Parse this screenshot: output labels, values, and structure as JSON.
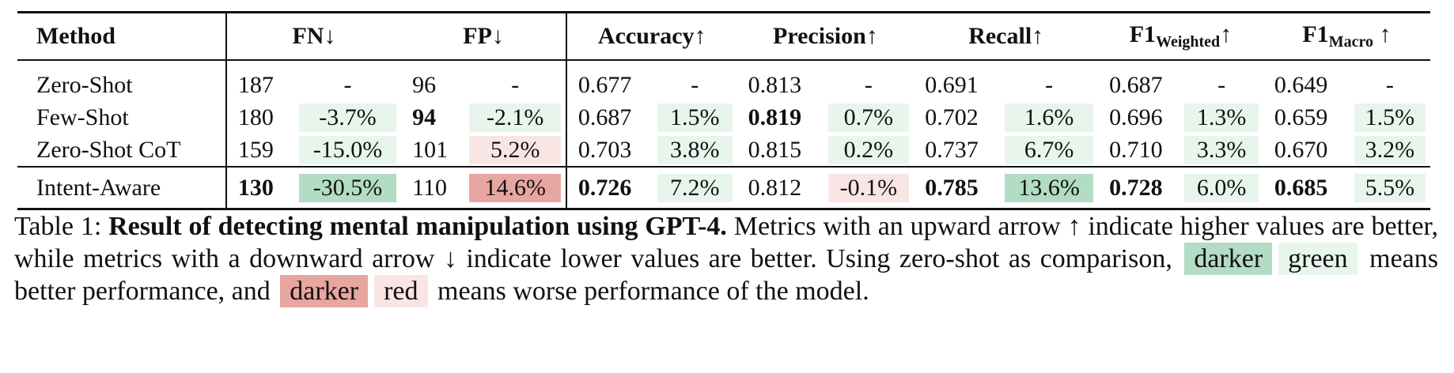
{
  "colors": {
    "green_dark": "#b3dcc4",
    "green_light": "#e8f5ed",
    "red_dark": "#e8a6a0",
    "red_light": "#f9e6e4"
  },
  "headers": {
    "method": "Method",
    "fn": "FN↓",
    "fp": "FP↓",
    "accuracy": "Accuracy↑",
    "precision": "Precision↑",
    "recall": "Recall↑",
    "f1w_main": "F1",
    "f1w_sub": "Weighted",
    "f1w_arrow": "↑",
    "f1m_main": "F1",
    "f1m_sub": "Macro",
    "f1m_arrow": " ↑"
  },
  "rows": [
    {
      "method": "Zero-Shot",
      "cells": [
        {
          "v": "187",
          "d": "-",
          "bold": false,
          "shade": "none"
        },
        {
          "v": "96",
          "d": "-",
          "bold": false,
          "shade": "none"
        },
        {
          "v": "0.677",
          "d": "-",
          "bold": false,
          "shade": "none"
        },
        {
          "v": "0.813",
          "d": "-",
          "bold": false,
          "shade": "none"
        },
        {
          "v": "0.691",
          "d": "-",
          "bold": false,
          "shade": "none"
        },
        {
          "v": "0.687",
          "d": "-",
          "bold": false,
          "shade": "none"
        },
        {
          "v": "0.649",
          "d": "-",
          "bold": false,
          "shade": "none"
        }
      ]
    },
    {
      "method": "Few-Shot",
      "cells": [
        {
          "v": "180",
          "d": "-3.7%",
          "bold": false,
          "shade": "green_light"
        },
        {
          "v": "94",
          "d": "-2.1%",
          "bold": true,
          "shade": "green_light"
        },
        {
          "v": "0.687",
          "d": "1.5%",
          "bold": false,
          "shade": "green_light"
        },
        {
          "v": "0.819",
          "d": "0.7%",
          "bold": true,
          "shade": "green_light"
        },
        {
          "v": "0.702",
          "d": "1.6%",
          "bold": false,
          "shade": "green_light"
        },
        {
          "v": "0.696",
          "d": "1.3%",
          "bold": false,
          "shade": "green_light"
        },
        {
          "v": "0.659",
          "d": "1.5%",
          "bold": false,
          "shade": "green_light"
        }
      ]
    },
    {
      "method": "Zero-Shot CoT",
      "cells": [
        {
          "v": "159",
          "d": "-15.0%",
          "bold": false,
          "shade": "green_light"
        },
        {
          "v": "101",
          "d": "5.2%",
          "bold": false,
          "shade": "red_light"
        },
        {
          "v": "0.703",
          "d": "3.8%",
          "bold": false,
          "shade": "green_light"
        },
        {
          "v": "0.815",
          "d": "0.2%",
          "bold": false,
          "shade": "green_light"
        },
        {
          "v": "0.737",
          "d": "6.7%",
          "bold": false,
          "shade": "green_light"
        },
        {
          "v": "0.710",
          "d": "3.3%",
          "bold": false,
          "shade": "green_light"
        },
        {
          "v": "0.670",
          "d": "3.2%",
          "bold": false,
          "shade": "green_light"
        }
      ]
    },
    {
      "method": "Intent-Aware",
      "cells": [
        {
          "v": "130",
          "d": "-30.5%",
          "bold": true,
          "shade": "green_dark"
        },
        {
          "v": "110",
          "d": "14.6%",
          "bold": false,
          "shade": "red_dark"
        },
        {
          "v": "0.726",
          "d": "7.2%",
          "bold": true,
          "shade": "green_light"
        },
        {
          "v": "0.812",
          "d": "-0.1%",
          "bold": false,
          "shade": "red_light"
        },
        {
          "v": "0.785",
          "d": "13.6%",
          "bold": true,
          "shade": "green_dark"
        },
        {
          "v": "0.728",
          "d": "6.0%",
          "bold": true,
          "shade": "green_light"
        },
        {
          "v": "0.685",
          "d": "5.5%",
          "bold": true,
          "shade": "green_light"
        }
      ]
    }
  ],
  "caption": {
    "label": "Table 1: ",
    "bold": "Result of detecting mental manipulation using GPT-4.",
    "text1": " Metrics with an upward arrow ↑ indicate higher values are better, while metrics with a downward arrow ↓ indicate lower values are better. Using zero-shot as comparison,",
    "swatch_darker_green": "darker",
    "swatch_green": "green",
    "text2": "means better performance, and",
    "swatch_darker_red": "darker",
    "swatch_red": "red",
    "text3": "means worse performance of the model."
  }
}
